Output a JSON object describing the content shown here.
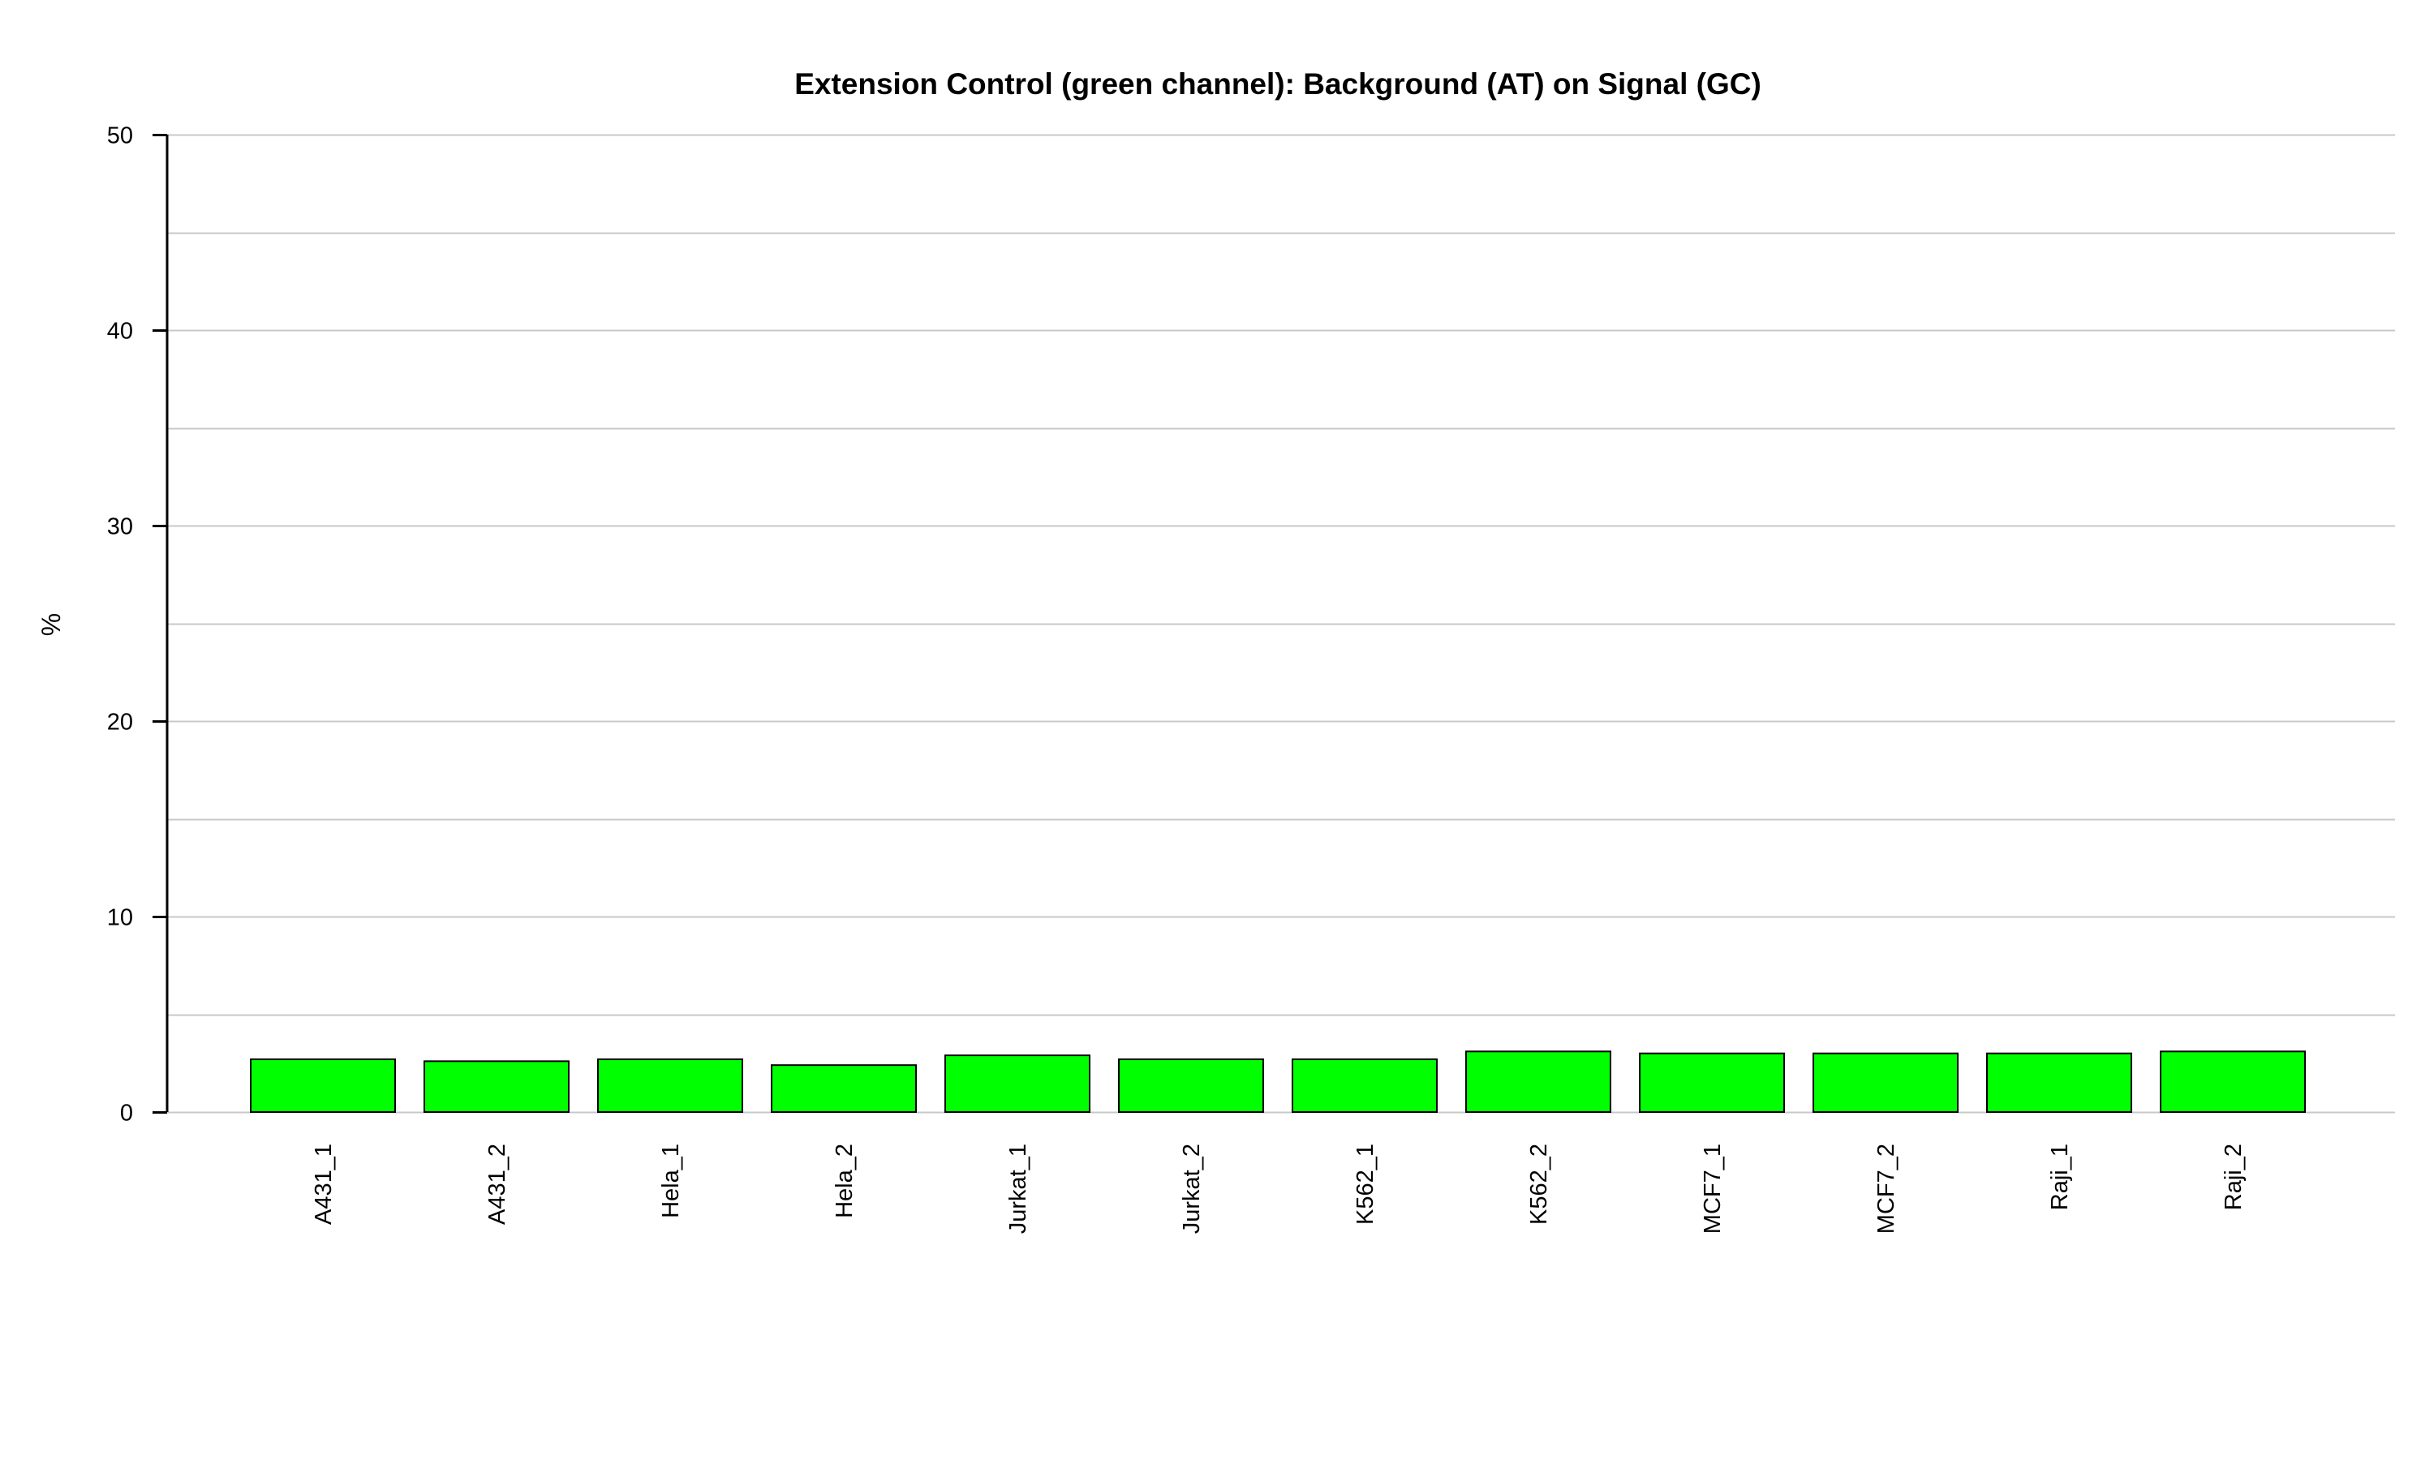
{
  "chart_data": {
    "type": "bar",
    "title": "Extension Control (green channel): Background (AT) on Signal (GC)",
    "xlabel": "",
    "ylabel": "%",
    "ylim": [
      0,
      50
    ],
    "yticks": [
      0,
      10,
      20,
      30,
      40,
      50
    ],
    "grid": true,
    "categories": [
      "A431_1",
      "A431_2",
      "Hela_1",
      "Hela_2",
      "Jurkat_1",
      "Jurkat_2",
      "K562_1",
      "K562_2",
      "MCF7_1",
      "MCF7_2",
      "Raji_1",
      "Raji_2"
    ],
    "values": [
      2.7,
      2.6,
      2.7,
      2.4,
      2.9,
      2.7,
      2.7,
      3.1,
      3.0,
      3.0,
      3.0,
      3.1
    ],
    "colors": {
      "bar_fill": "#00ff00",
      "bar_stroke": "#000000",
      "grid": "#c8c8c8",
      "axis": "#000000"
    }
  }
}
